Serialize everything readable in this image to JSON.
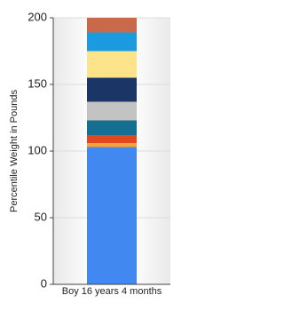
{
  "chart_data": {
    "type": "bar",
    "stacked": true,
    "y_label": "Percentile Weight in Pounds",
    "categories": [
      "Boy 16 years 4 months"
    ],
    "series": [
      {
        "color": "#4189f0",
        "values": [
          103
        ]
      },
      {
        "color": "#f5a23a",
        "values": [
          3
        ]
      },
      {
        "color": "#e0481f",
        "values": [
          6
        ]
      },
      {
        "color": "#156f93",
        "values": [
          11
        ]
      },
      {
        "color": "#c2c2c2",
        "values": [
          14
        ]
      },
      {
        "color": "#1b3566",
        "values": [
          18
        ]
      },
      {
        "color": "#fde38a",
        "values": [
          20
        ]
      },
      {
        "color": "#1a9be0",
        "values": [
          14
        ]
      },
      {
        "color": "#c86a4a",
        "values": [
          11
        ]
      }
    ],
    "ylim": [
      0,
      200
    ],
    "yticks": [
      0,
      50,
      100,
      150,
      200
    ],
    "grid": true
  }
}
